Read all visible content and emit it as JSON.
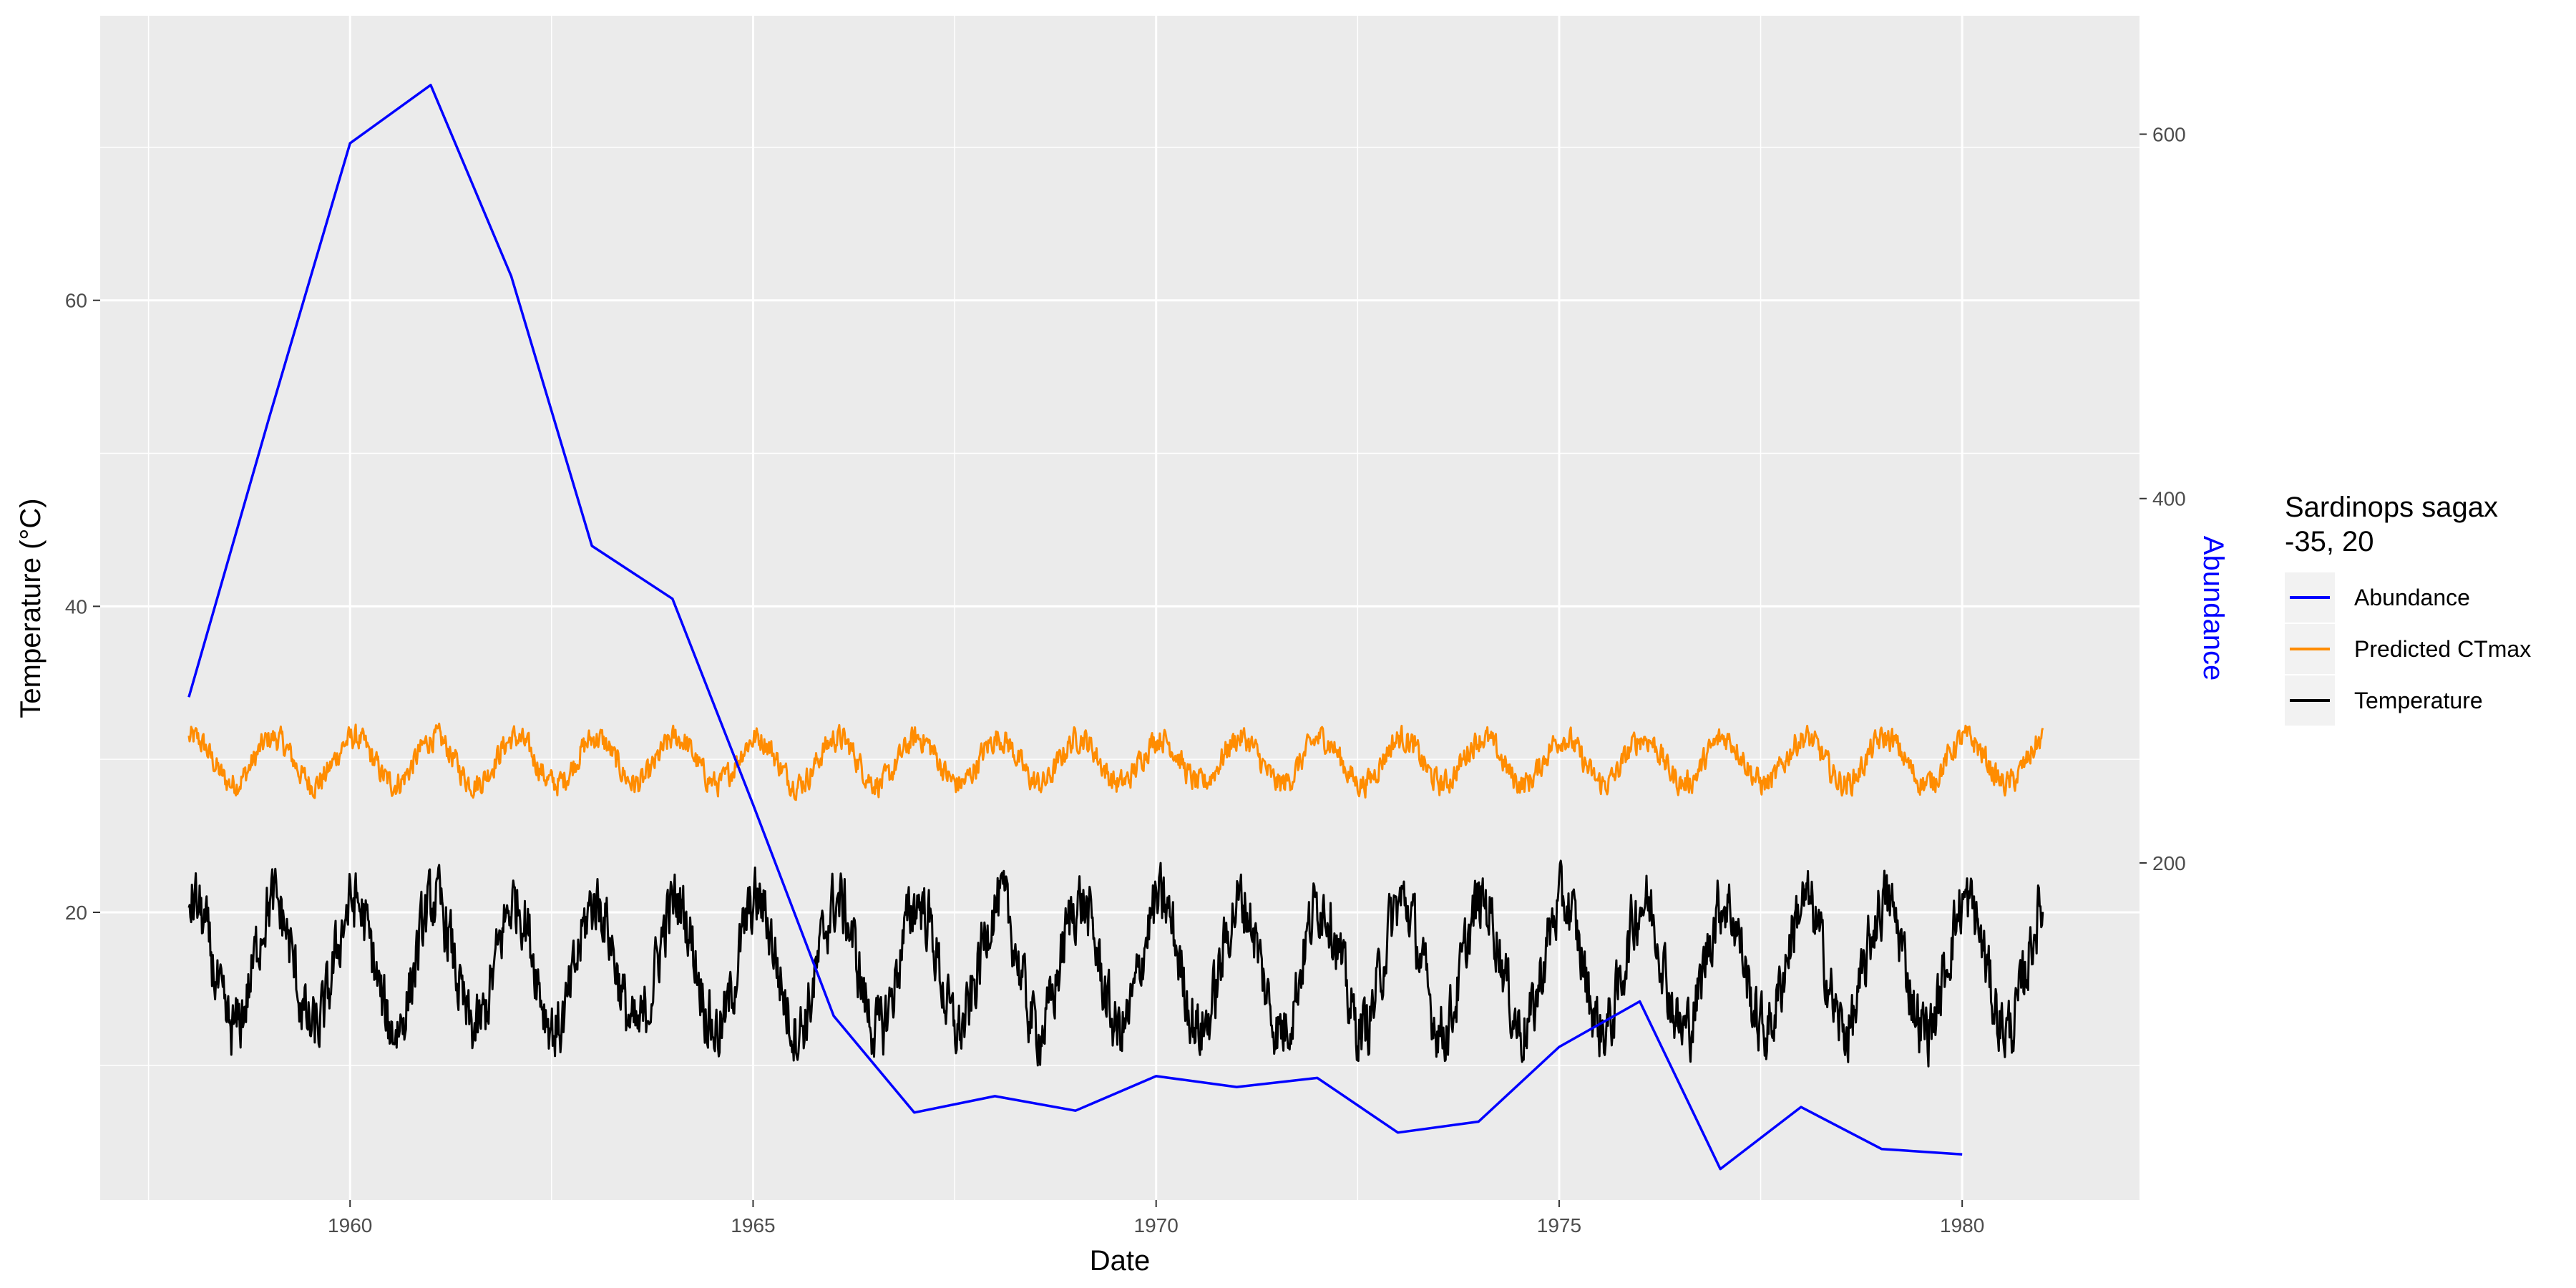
{
  "chart_data": {
    "type": "line",
    "xlabel": "Date",
    "ylabel": "Temperature (°C)",
    "y2label": "Abundance",
    "x_ticks": [
      1960,
      1965,
      1970,
      1975,
      1980
    ],
    "y_ticks": [
      20,
      40,
      60
    ],
    "y2_ticks": [
      200,
      400,
      600
    ],
    "xlim": [
      1956.9,
      1982.2
    ],
    "ylim": [
      1.2,
      78.6
    ],
    "y2lim": [
      15,
      665
    ],
    "grid": true,
    "legend": {
      "title_line1": "Sardinops sagax",
      "title_line2": "-35, 20",
      "position": "right",
      "entries": [
        "Abundance",
        "Predicted CTmax",
        "Temperature"
      ]
    },
    "series": [
      {
        "name": "Abundance",
        "axis": "secondary",
        "color": "#0000ff",
        "x": [
          1958,
          1959,
          1960,
          1961,
          1962,
          1963,
          1964,
          1965,
          1966,
          1967,
          1968,
          1969,
          1970,
          1971,
          1972,
          1973,
          1974,
          1975,
          1976,
          1977,
          1978,
          1979,
          1980
        ],
        "values": [
          291,
          445,
          595,
          627,
          522,
          374,
          345,
          232,
          116,
          63,
          72,
          64,
          83,
          77,
          82,
          52,
          58,
          99,
          124,
          32,
          66,
          43,
          40
        ]
      },
      {
        "name": "Predicted CTmax",
        "axis": "primary",
        "color": "#ff8c00",
        "x_range": [
          1958,
          1981
        ],
        "mean": 29.9,
        "amplitude": 1.5,
        "noise": 0.7,
        "peak_phase": 0.05
      },
      {
        "name": "Temperature",
        "axis": "primary",
        "color": "#000000",
        "x_range": [
          1958,
          1981
        ],
        "mean": 16.5,
        "amplitude": 4.2,
        "noise": 1.8,
        "peak_phase": 0.05
      }
    ]
  }
}
